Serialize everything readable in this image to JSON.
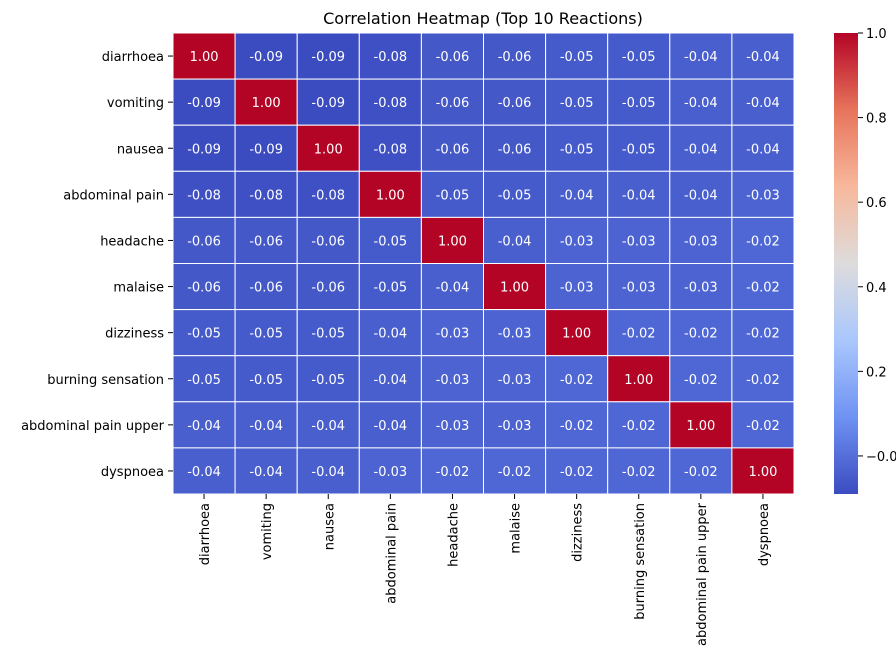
{
  "chart_data": {
    "type": "heatmap",
    "title": "Correlation Heatmap (Top 10 Reactions)",
    "xlabel": "",
    "ylabel": "",
    "labels": [
      "diarrhoea",
      "vomiting",
      "nausea",
      "abdominal pain",
      "headache",
      "malaise",
      "dizziness",
      "burning sensation",
      "abdominal pain upper",
      "dyspnoea"
    ],
    "values": [
      [
        1.0,
        -0.09,
        -0.09,
        -0.08,
        -0.06,
        -0.06,
        -0.05,
        -0.05,
        -0.04,
        -0.04
      ],
      [
        -0.09,
        1.0,
        -0.09,
        -0.08,
        -0.06,
        -0.06,
        -0.05,
        -0.05,
        -0.04,
        -0.04
      ],
      [
        -0.09,
        -0.09,
        1.0,
        -0.08,
        -0.06,
        -0.06,
        -0.05,
        -0.05,
        -0.04,
        -0.04
      ],
      [
        -0.08,
        -0.08,
        -0.08,
        1.0,
        -0.05,
        -0.05,
        -0.04,
        -0.04,
        -0.04,
        -0.03
      ],
      [
        -0.06,
        -0.06,
        -0.06,
        -0.05,
        1.0,
        -0.04,
        -0.03,
        -0.03,
        -0.03,
        -0.02
      ],
      [
        -0.06,
        -0.06,
        -0.06,
        -0.05,
        -0.04,
        1.0,
        -0.03,
        -0.03,
        -0.03,
        -0.02
      ],
      [
        -0.05,
        -0.05,
        -0.05,
        -0.04,
        -0.03,
        -0.03,
        1.0,
        -0.02,
        -0.02,
        -0.02
      ],
      [
        -0.05,
        -0.05,
        -0.05,
        -0.04,
        -0.03,
        -0.03,
        -0.02,
        1.0,
        -0.02,
        -0.02
      ],
      [
        -0.04,
        -0.04,
        -0.04,
        -0.04,
        -0.03,
        -0.03,
        -0.02,
        -0.02,
        1.0,
        -0.02
      ],
      [
        -0.04,
        -0.04,
        -0.04,
        -0.03,
        -0.02,
        -0.02,
        -0.02,
        -0.02,
        -0.02,
        1.0
      ]
    ],
    "annotation_format": "0.00",
    "colormap": "coolwarm",
    "colormap_stops": [
      "#3b4cc0",
      "#6f92f3",
      "#aac7fd",
      "#dddcdc",
      "#f7b89c",
      "#e7745b",
      "#b40426"
    ],
    "colorbar": {
      "min": -0.09,
      "max": 1.0,
      "ticks": [
        -0.0,
        0.2,
        0.4,
        0.6,
        0.8,
        1.0
      ],
      "tick_labels": [
        "−0.0",
        "0.2",
        "0.4",
        "0.6",
        "0.8",
        "1.0"
      ]
    },
    "grid": true,
    "legend": "colorbar-right"
  }
}
